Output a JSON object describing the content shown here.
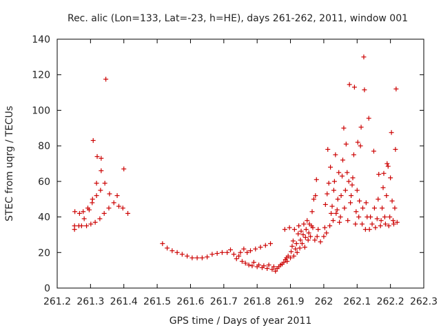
{
  "chart_data": {
    "type": "scatter",
    "title": "Rec. alic (Lon=133, Lat=-23, h=HE), days 261-262, 2011, window 001",
    "xlabel": "GPS time / Days of year 2011",
    "ylabel": "STEC from uqrg / TECUs",
    "xlim": [
      261.2,
      262.3
    ],
    "ylim": [
      0,
      140
    ],
    "xticks": [
      "261.2",
      "261.3",
      "261.4",
      "261.5",
      "261.6",
      "261.7",
      "261.8",
      "261.9",
      "262",
      "262.1",
      "262.2",
      "262.3"
    ],
    "yticks": [
      "0",
      "20",
      "40",
      "60",
      "80",
      "100",
      "120",
      "140"
    ],
    "grid": false,
    "marker": "plus",
    "color": "#cc0000",
    "points": [
      [
        261.252,
        33
      ],
      [
        261.252,
        35
      ],
      [
        261.253,
        43
      ],
      [
        261.265,
        35
      ],
      [
        261.267,
        42
      ],
      [
        261.273,
        35
      ],
      [
        261.278,
        43
      ],
      [
        261.281,
        39
      ],
      [
        261.288,
        35
      ],
      [
        261.292,
        45
      ],
      [
        261.296,
        44
      ],
      [
        261.301,
        36
      ],
      [
        261.305,
        48
      ],
      [
        261.306,
        50
      ],
      [
        261.308,
        83
      ],
      [
        261.314,
        37
      ],
      [
        261.318,
        52
      ],
      [
        261.318,
        59
      ],
      [
        261.32,
        74
      ],
      [
        261.328,
        39
      ],
      [
        261.33,
        55
      ],
      [
        261.332,
        66
      ],
      [
        261.332,
        73
      ],
      [
        261.341,
        42
      ],
      [
        261.343,
        59
      ],
      [
        261.346,
        117.5
      ],
      [
        261.355,
        45
      ],
      [
        261.357,
        53
      ],
      [
        261.37,
        48
      ],
      [
        261.38,
        52
      ],
      [
        261.385,
        46
      ],
      [
        261.397,
        45
      ],
      [
        261.4,
        67
      ],
      [
        261.412,
        42
      ],
      [
        261.516,
        25
      ],
      [
        261.53,
        22.5
      ],
      [
        261.545,
        21
      ],
      [
        261.56,
        20
      ],
      [
        261.575,
        19
      ],
      [
        261.59,
        18
      ],
      [
        261.605,
        17
      ],
      [
        261.62,
        17
      ],
      [
        261.635,
        17
      ],
      [
        261.65,
        17.5
      ],
      [
        261.665,
        19
      ],
      [
        261.68,
        19.5
      ],
      [
        261.695,
        20
      ],
      [
        261.71,
        20
      ],
      [
        261.72,
        21.5
      ],
      [
        261.73,
        19
      ],
      [
        261.738,
        16.5
      ],
      [
        261.745,
        18
      ],
      [
        261.75,
        20
      ],
      [
        261.755,
        15
      ],
      [
        261.76,
        22
      ],
      [
        261.765,
        14
      ],
      [
        261.77,
        20
      ],
      [
        261.775,
        13
      ],
      [
        261.78,
        21
      ],
      [
        261.785,
        12.5
      ],
      [
        261.79,
        14.5
      ],
      [
        261.795,
        22
      ],
      [
        261.8,
        12
      ],
      [
        261.805,
        13
      ],
      [
        261.81,
        23
      ],
      [
        261.815,
        11.5
      ],
      [
        261.82,
        12.5
      ],
      [
        261.825,
        24
      ],
      [
        261.83,
        11
      ],
      [
        261.835,
        13
      ],
      [
        261.84,
        25
      ],
      [
        261.845,
        10.5
      ],
      [
        261.85,
        12
      ],
      [
        261.855,
        9.5
      ],
      [
        261.86,
        11
      ],
      [
        261.865,
        12
      ],
      [
        261.87,
        13
      ],
      [
        261.875,
        13.5
      ],
      [
        261.88,
        14.5
      ],
      [
        261.883,
        33
      ],
      [
        261.885,
        16
      ],
      [
        261.888,
        17
      ],
      [
        261.89,
        15
      ],
      [
        261.893,
        18
      ],
      [
        261.897,
        34
      ],
      [
        261.9,
        17
      ],
      [
        261.902,
        20.5
      ],
      [
        261.905,
        23.5
      ],
      [
        261.908,
        26.5
      ],
      [
        261.91,
        18
      ],
      [
        261.912,
        33
      ],
      [
        261.915,
        22
      ],
      [
        261.918,
        25
      ],
      [
        261.92,
        20
      ],
      [
        261.923,
        30.5
      ],
      [
        261.925,
        35
      ],
      [
        261.928,
        22.5
      ],
      [
        261.93,
        27
      ],
      [
        261.932,
        32
      ],
      [
        261.935,
        25
      ],
      [
        261.938,
        30
      ],
      [
        261.94,
        36
      ],
      [
        261.943,
        23
      ],
      [
        261.945,
        28.5
      ],
      [
        261.947,
        33
      ],
      [
        261.95,
        38
      ],
      [
        261.953,
        27
      ],
      [
        261.955,
        31
      ],
      [
        261.957,
        36
      ],
      [
        261.96,
        29
      ],
      [
        261.963,
        35
      ],
      [
        261.965,
        43
      ],
      [
        261.967,
        34
      ],
      [
        261.97,
        50
      ],
      [
        261.973,
        27
      ],
      [
        261.975,
        52
      ],
      [
        261.978,
        61
      ],
      [
        261.98,
        29
      ],
      [
        261.983,
        33
      ],
      [
        261.99,
        26
      ],
      [
        262.0,
        29
      ],
      [
        262.003,
        34
      ],
      [
        262.005,
        47
      ],
      [
        262.008,
        31
      ],
      [
        262.01,
        53
      ],
      [
        262.012,
        78
      ],
      [
        262.015,
        59
      ],
      [
        262.018,
        35
      ],
      [
        262.02,
        68
      ],
      [
        262.022,
        42
      ],
      [
        262.025,
        46
      ],
      [
        262.028,
        38
      ],
      [
        262.03,
        55
      ],
      [
        262.032,
        60
      ],
      [
        262.035,
        75
      ],
      [
        262.037,
        42
      ],
      [
        262.04,
        44
      ],
      [
        262.042,
        50
      ],
      [
        262.045,
        65
      ],
      [
        262.047,
        37
      ],
      [
        262.05,
        40
      ],
      [
        262.052,
        52
      ],
      [
        262.055,
        63
      ],
      [
        262.057,
        72
      ],
      [
        262.06,
        90
      ],
      [
        262.062,
        45
      ],
      [
        262.065,
        55
      ],
      [
        262.067,
        81
      ],
      [
        262.07,
        65
      ],
      [
        262.072,
        38
      ],
      [
        262.075,
        60
      ],
      [
        262.077,
        114.5
      ],
      [
        262.08,
        48
      ],
      [
        262.082,
        52
      ],
      [
        262.085,
        58
      ],
      [
        262.087,
        62
      ],
      [
        262.09,
        75
      ],
      [
        262.092,
        113
      ],
      [
        262.095,
        36
      ],
      [
        262.097,
        43
      ],
      [
        262.1,
        55
      ],
      [
        262.102,
        82
      ],
      [
        262.105,
        40
      ],
      [
        262.107,
        49
      ],
      [
        262.11,
        80
      ],
      [
        262.112,
        90.5
      ],
      [
        262.115,
        36
      ],
      [
        262.117,
        45
      ],
      [
        262.12,
        130
      ],
      [
        262.122,
        111.5
      ],
      [
        262.125,
        33
      ],
      [
        262.127,
        48
      ],
      [
        262.13,
        40
      ],
      [
        262.135,
        95.5
      ],
      [
        262.137,
        33
      ],
      [
        262.14,
        40
      ],
      [
        262.145,
        36
      ],
      [
        262.15,
        77
      ],
      [
        262.152,
        45
      ],
      [
        262.155,
        34
      ],
      [
        262.16,
        39
      ],
      [
        262.163,
        50
      ],
      [
        262.165,
        64
      ],
      [
        262.17,
        35
      ],
      [
        262.172,
        38
      ],
      [
        262.175,
        45
      ],
      [
        262.178,
        56.5
      ],
      [
        262.18,
        64.5
      ],
      [
        262.183,
        40
      ],
      [
        262.185,
        36
      ],
      [
        262.188,
        52
      ],
      [
        262.19,
        70
      ],
      [
        262.193,
        68.5
      ],
      [
        262.195,
        35
      ],
      [
        262.198,
        40
      ],
      [
        262.2,
        62
      ],
      [
        262.203,
        87.5
      ],
      [
        262.205,
        49
      ],
      [
        262.208,
        38
      ],
      [
        262.21,
        36
      ],
      [
        262.213,
        45
      ],
      [
        262.215,
        78
      ],
      [
        262.217,
        112
      ],
      [
        262.22,
        37
      ]
    ]
  }
}
